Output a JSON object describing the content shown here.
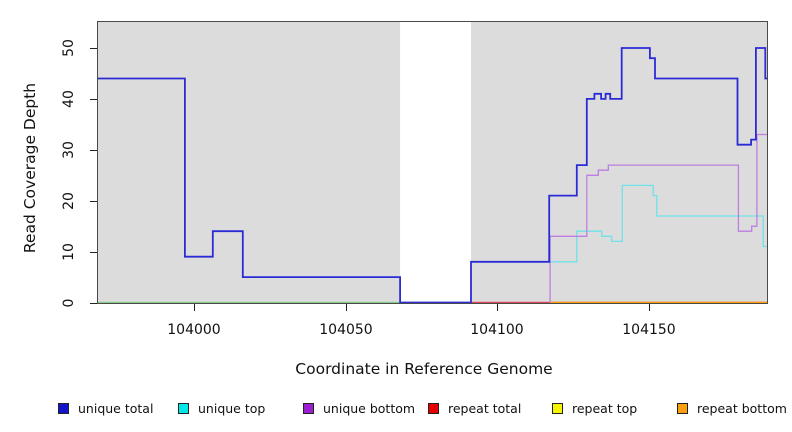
{
  "chart_data": {
    "type": "line",
    "subtype": "step",
    "title": "",
    "xlabel": "Coordinate in Reference Genome",
    "ylabel": "Read Coverage Depth",
    "x_ticks": [
      104000,
      104050,
      104100,
      104150
    ],
    "y_ticks": [
      0,
      10,
      20,
      30,
      40,
      50
    ],
    "xlim": [
      103968,
      104189.4
    ],
    "ylim": [
      0,
      55.3
    ],
    "grid": "off",
    "plot_bg": "#dcdcdc",
    "border_color": "#4a4a4a",
    "gap_region": {
      "from": 104068,
      "to": 104091.4,
      "color": "#ffffff"
    },
    "series": [
      {
        "name": "unique total",
        "color": "#2b2bd6",
        "width": 1.8,
        "end": 104189.4,
        "steps": [
          [
            103968,
            44
          ],
          [
            103997,
            9
          ],
          [
            104006.2,
            14
          ],
          [
            104016.1,
            5
          ],
          [
            104068,
            0
          ],
          [
            104091.4,
            8
          ],
          [
            104117.2,
            21
          ],
          [
            104126.3,
            27
          ],
          [
            104129.6,
            40
          ],
          [
            104132.1,
            41
          ],
          [
            104134.3,
            40
          ],
          [
            104135.8,
            41
          ],
          [
            104137.3,
            40
          ],
          [
            104141.1,
            50
          ],
          [
            104150.4,
            48
          ],
          [
            104152.1,
            44
          ],
          [
            104179.3,
            31
          ],
          [
            104183.8,
            32
          ],
          [
            104185.4,
            50
          ],
          [
            104188.5,
            44
          ]
        ]
      },
      {
        "name": "unique top",
        "color": "#6fe2e8",
        "width": 1.3,
        "end": 104189.4,
        "steps": [
          [
            104117.5,
            8
          ],
          [
            104126.3,
            14
          ],
          [
            104134.5,
            13
          ],
          [
            104137.8,
            12
          ],
          [
            104141.3,
            23
          ],
          [
            104151.5,
            21
          ],
          [
            104152.7,
            17
          ],
          [
            104187.8,
            11
          ]
        ]
      },
      {
        "name": "unique bottom",
        "color": "#bd7ee0",
        "width": 1.3,
        "end": 104189.4,
        "steps": [
          [
            104117.5,
            0
          ],
          [
            104117.5,
            13
          ],
          [
            104129.6,
            25
          ],
          [
            104133.4,
            26
          ],
          [
            104136.7,
            27
          ],
          [
            104179.6,
            14
          ],
          [
            104184,
            15
          ],
          [
            104185.7,
            33
          ]
        ]
      },
      {
        "name": "repeat total",
        "color": "#d94b59",
        "width": 1.4,
        "end": 104189.4,
        "steps": [
          [
            104091.4,
            0
          ]
        ]
      },
      {
        "name": "repeat top",
        "color": "#8ccb8c",
        "width": 1.5,
        "end": 104068,
        "steps": [
          [
            103968,
            0
          ]
        ],
        "note": "line sits at 0; rendered pale green where it overlaps unique top at 0"
      },
      {
        "name": "repeat bottom",
        "color": "#ff9d0a",
        "width": 1.6,
        "end": 104189.4,
        "steps": [
          [
            104117.5,
            0
          ]
        ]
      }
    ],
    "draw_order": [
      "repeat top",
      "repeat total",
      "repeat bottom",
      "unique top",
      "unique bottom",
      "unique total"
    ],
    "legend_position": "bottom"
  },
  "legend": {
    "items": [
      {
        "label": "unique total",
        "fill": "#1414cc"
      },
      {
        "label": "unique top",
        "fill": "#00e8e8"
      },
      {
        "label": "unique bottom",
        "fill": "#9a1fd1"
      },
      {
        "label": "repeat total",
        "fill": "#e60000"
      },
      {
        "label": "repeat top",
        "fill": "#f5f500"
      },
      {
        "label": "repeat bottom",
        "fill": "#fba00f"
      }
    ]
  }
}
